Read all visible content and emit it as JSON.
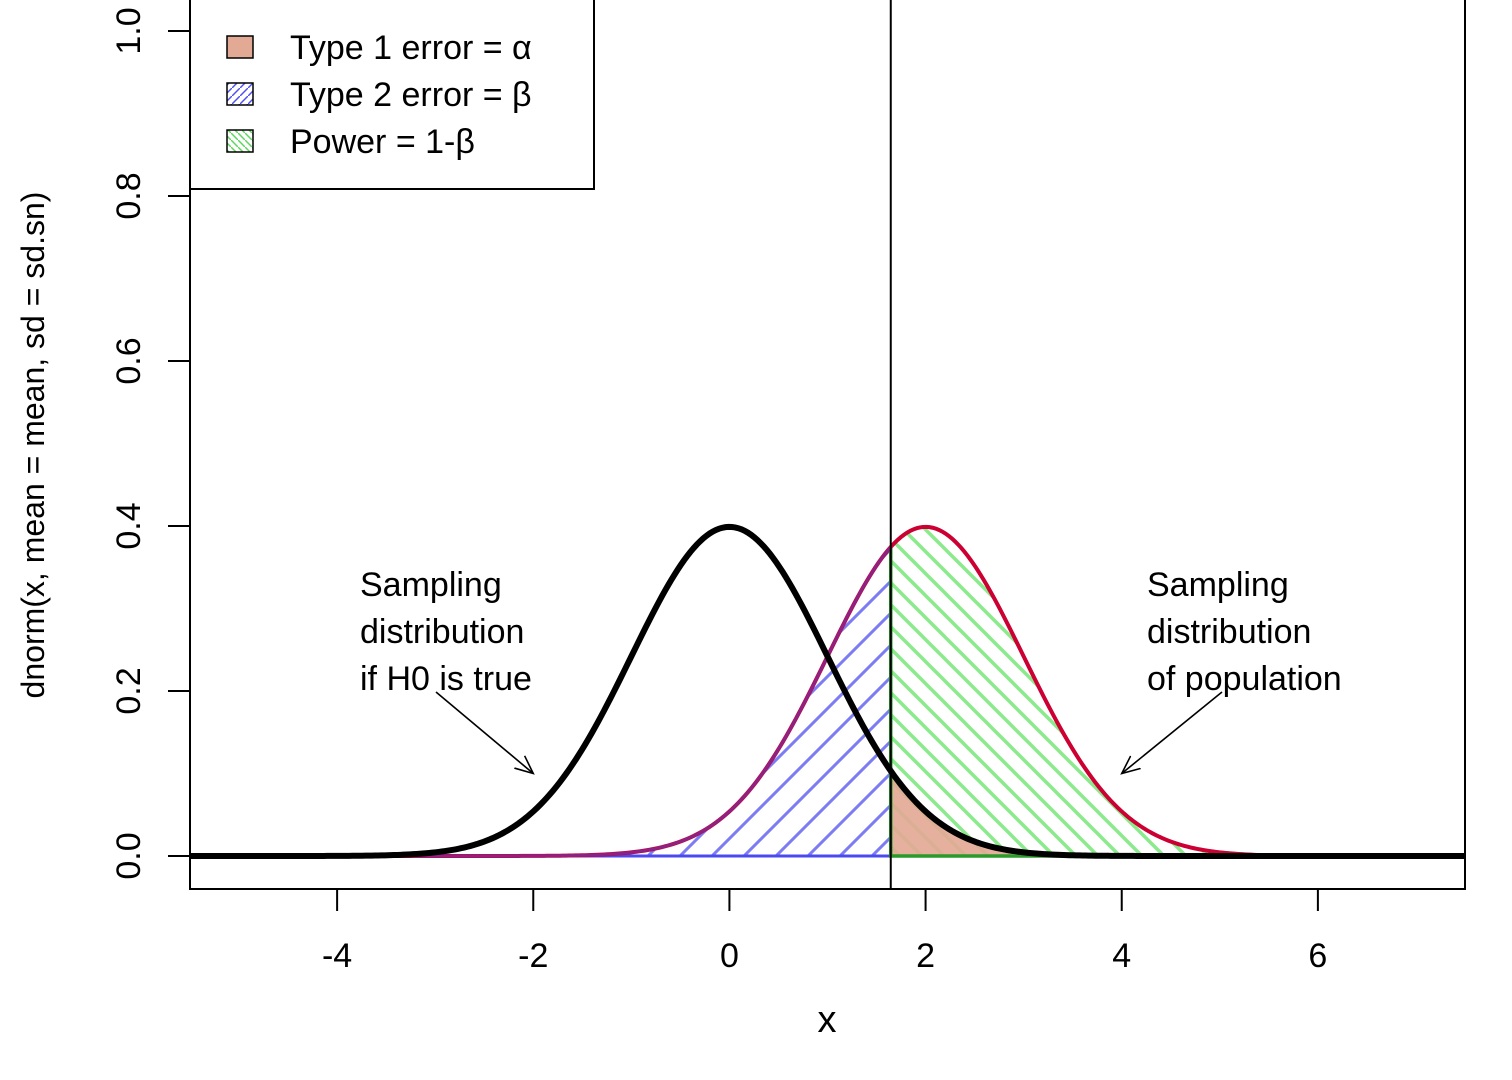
{
  "chart_data": {
    "type": "area",
    "xlabel": "x",
    "ylabel": "dnorm(x, mean = mean, sd = sd.sn)",
    "xlim": [
      -5.5,
      7.5
    ],
    "ylim": [
      -0.04,
      1.04
    ],
    "x_ticks": [
      "-4",
      "-2",
      "0",
      "2",
      "4",
      "6"
    ],
    "y_ticks": [
      "0.0",
      "0.2",
      "0.4",
      "0.6",
      "0.8",
      "1.0"
    ],
    "x_tick_values": [
      -4,
      -2,
      0,
      2,
      4,
      6
    ],
    "y_tick_values": [
      0,
      0.2,
      0.4,
      0.6,
      0.8,
      1.0
    ],
    "critical_value": 1.645,
    "distributions": [
      {
        "mean": 0,
        "sd": 1,
        "color": "#000000"
      },
      {
        "mean": 2,
        "sd": 1,
        "color": "#cc0033"
      }
    ],
    "legend_position": "top-left",
    "legend": [
      {
        "label": "Type 1 error = α",
        "fill": "#e2a994",
        "pattern": "solid"
      },
      {
        "label": "Type 2 error = β",
        "fill": "#6b6bff",
        "pattern": "hatch-forward"
      },
      {
        "label": "Power = 1-β",
        "fill": "#8ef08e",
        "pattern": "hatch-back"
      }
    ],
    "annotations": [
      {
        "lines": [
          "Sampling",
          "distribution",
          "if H0 is true"
        ],
        "arrow_to": [
          -2,
          0.1
        ]
      },
      {
        "lines": [
          "Sampling",
          "distribution",
          "of population"
        ],
        "arrow_to": [
          4,
          0.1
        ]
      }
    ],
    "colors": {
      "type1": "#e2a994",
      "type2": "#4a4af0",
      "power": "#7fe87f",
      "power_edge": "#2a9a2a",
      "h0_curve": "#000000",
      "h1_curve": "#cc0033",
      "h1_overlay": "#7a2a9a"
    }
  }
}
